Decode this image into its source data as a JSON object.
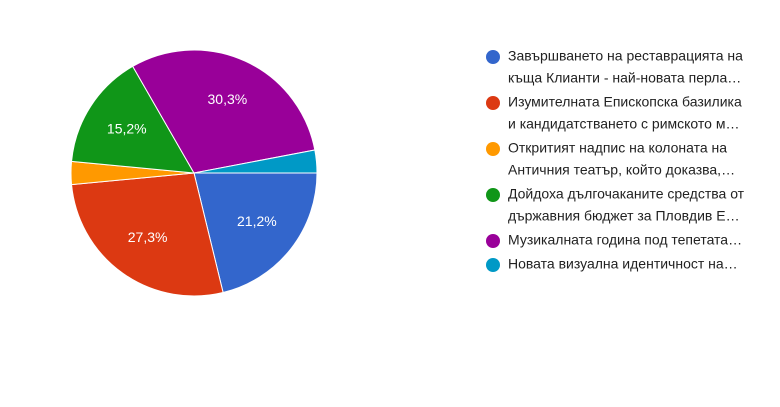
{
  "chart_data": {
    "type": "pie",
    "categories": [
      [
        "Завършването на реставрацията на",
        "къща Клианти - най-новата перла…"
      ],
      [
        "Изумителната Епископска базилика",
        "и кандидатстването с римското м…"
      ],
      [
        "Откритият надпис на колоната на",
        "Античния театър, който доказва,…"
      ],
      [
        "Дойдоха дългочаканите средства от",
        "държавния бюджет за Пловдив Е…"
      ],
      [
        "Музикалната година под тепетата…"
      ],
      [
        "Новата визуална идентичност на…"
      ]
    ],
    "values": [
      21.2,
      27.3,
      3.0,
      15.2,
      30.3,
      3.0
    ],
    "value_labels": [
      "21,2%",
      "27,3%",
      null,
      "15,2%",
      "30,3%",
      null
    ],
    "colors": [
      "#3366cc",
      "#dc3912",
      "#ff9900",
      "#109618",
      "#990099",
      "#0099c6"
    ]
  }
}
